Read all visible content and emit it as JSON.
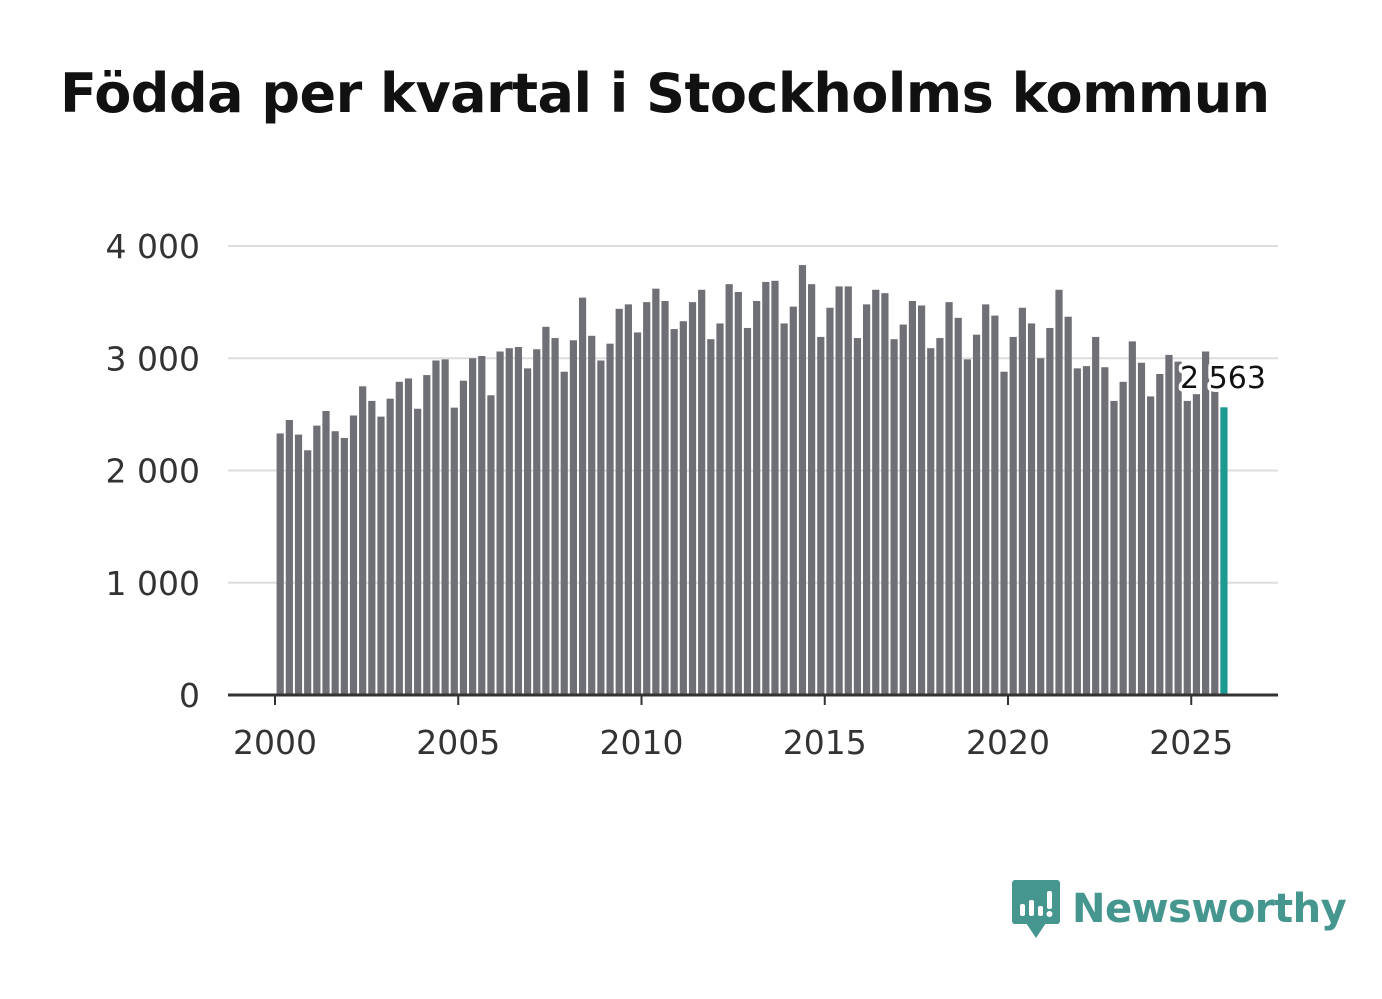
{
  "title": "Födda per kvartal i Stockholms kommun",
  "brand": {
    "name": "Newsworthy"
  },
  "colors": {
    "bar": "#6f6f76",
    "highlight": "#1d9a90",
    "grid": "#dddddd",
    "axis": "#333333",
    "text": "#333333",
    "brand": "#45968f"
  },
  "chart_data": {
    "type": "bar",
    "title": "Födda per kvartal i Stockholms kommun",
    "xlabel": "",
    "ylabel": "",
    "ylim": [
      0,
      4000
    ],
    "yticks": [
      0,
      1000,
      2000,
      3000,
      4000
    ],
    "ytick_labels": [
      "0",
      "1 000",
      "2 000",
      "3 000",
      "4 000"
    ],
    "xlim": [
      2000,
      2027.3
    ],
    "xticks": [
      2000,
      2005,
      2010,
      2015,
      2020,
      2025
    ],
    "xtick_labels": [
      "2000",
      "2005",
      "2010",
      "2015",
      "2020",
      "2025"
    ],
    "start_year": 2000,
    "grid": true,
    "highlight_label": "2 563",
    "values": [
      2330,
      2450,
      2320,
      2180,
      2400,
      2530,
      2350,
      2290,
      2490,
      2750,
      2620,
      2480,
      2640,
      2790,
      2820,
      2550,
      2850,
      2980,
      2990,
      2560,
      2800,
      3000,
      3020,
      2670,
      3060,
      3090,
      3100,
      2910,
      3080,
      3280,
      3180,
      2880,
      3160,
      3540,
      3200,
      2980,
      3130,
      3440,
      3480,
      3230,
      3500,
      3620,
      3510,
      3260,
      3330,
      3500,
      3610,
      3170,
      3310,
      3660,
      3590,
      3270,
      3510,
      3680,
      3690,
      3310,
      3460,
      3830,
      3660,
      3190,
      3450,
      3640,
      3640,
      3180,
      3480,
      3610,
      3580,
      3170,
      3300,
      3510,
      3470,
      3090,
      3180,
      3500,
      3360,
      2990,
      3210,
      3480,
      3380,
      2880,
      3190,
      3450,
      3310,
      3000,
      3270,
      3610,
      3370,
      2910,
      2930,
      3190,
      2920,
      2620,
      2790,
      3150,
      2960,
      2660,
      2860,
      3030,
      2970,
      2620,
      2680,
      3060,
      2710,
      2563
    ]
  }
}
